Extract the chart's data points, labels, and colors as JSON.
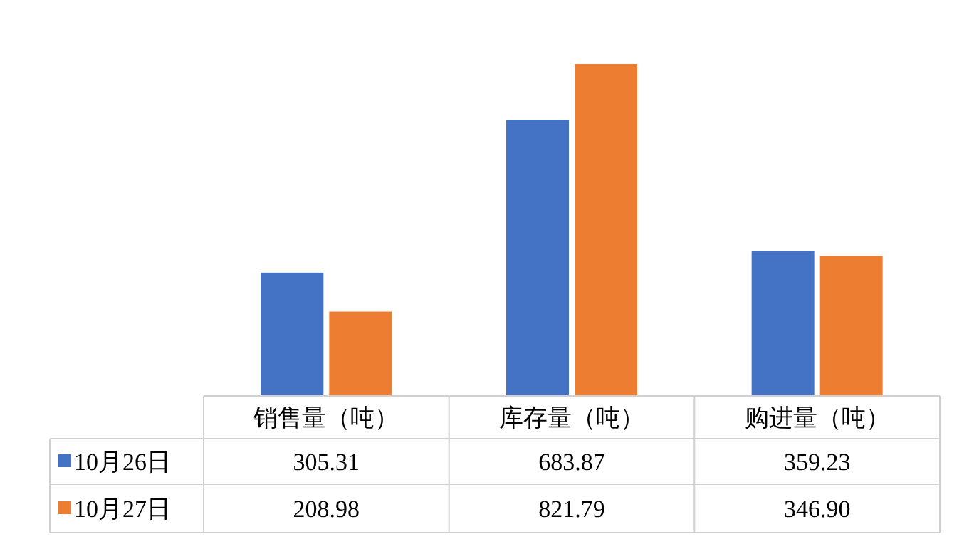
{
  "chart_data": {
    "type": "bar",
    "categories": [
      "销售量（吨）",
      "库存量（吨）",
      "购进量（吨）"
    ],
    "series": [
      {
        "name": "10月26日",
        "color": "#4472c4",
        "values": [
          305.31,
          683.87,
          359.23
        ],
        "value_labels": [
          "305.31",
          "683.87",
          "359.23"
        ]
      },
      {
        "name": "10月27日",
        "color": "#ed7d31",
        "values": [
          208.98,
          821.79,
          346.9
        ],
        "value_labels": [
          "208.98",
          "821.79",
          "346.90"
        ]
      }
    ],
    "ylim": [
      0,
      821.79
    ],
    "tick_labels": "x",
    "legend": "bottom",
    "grid": false
  }
}
